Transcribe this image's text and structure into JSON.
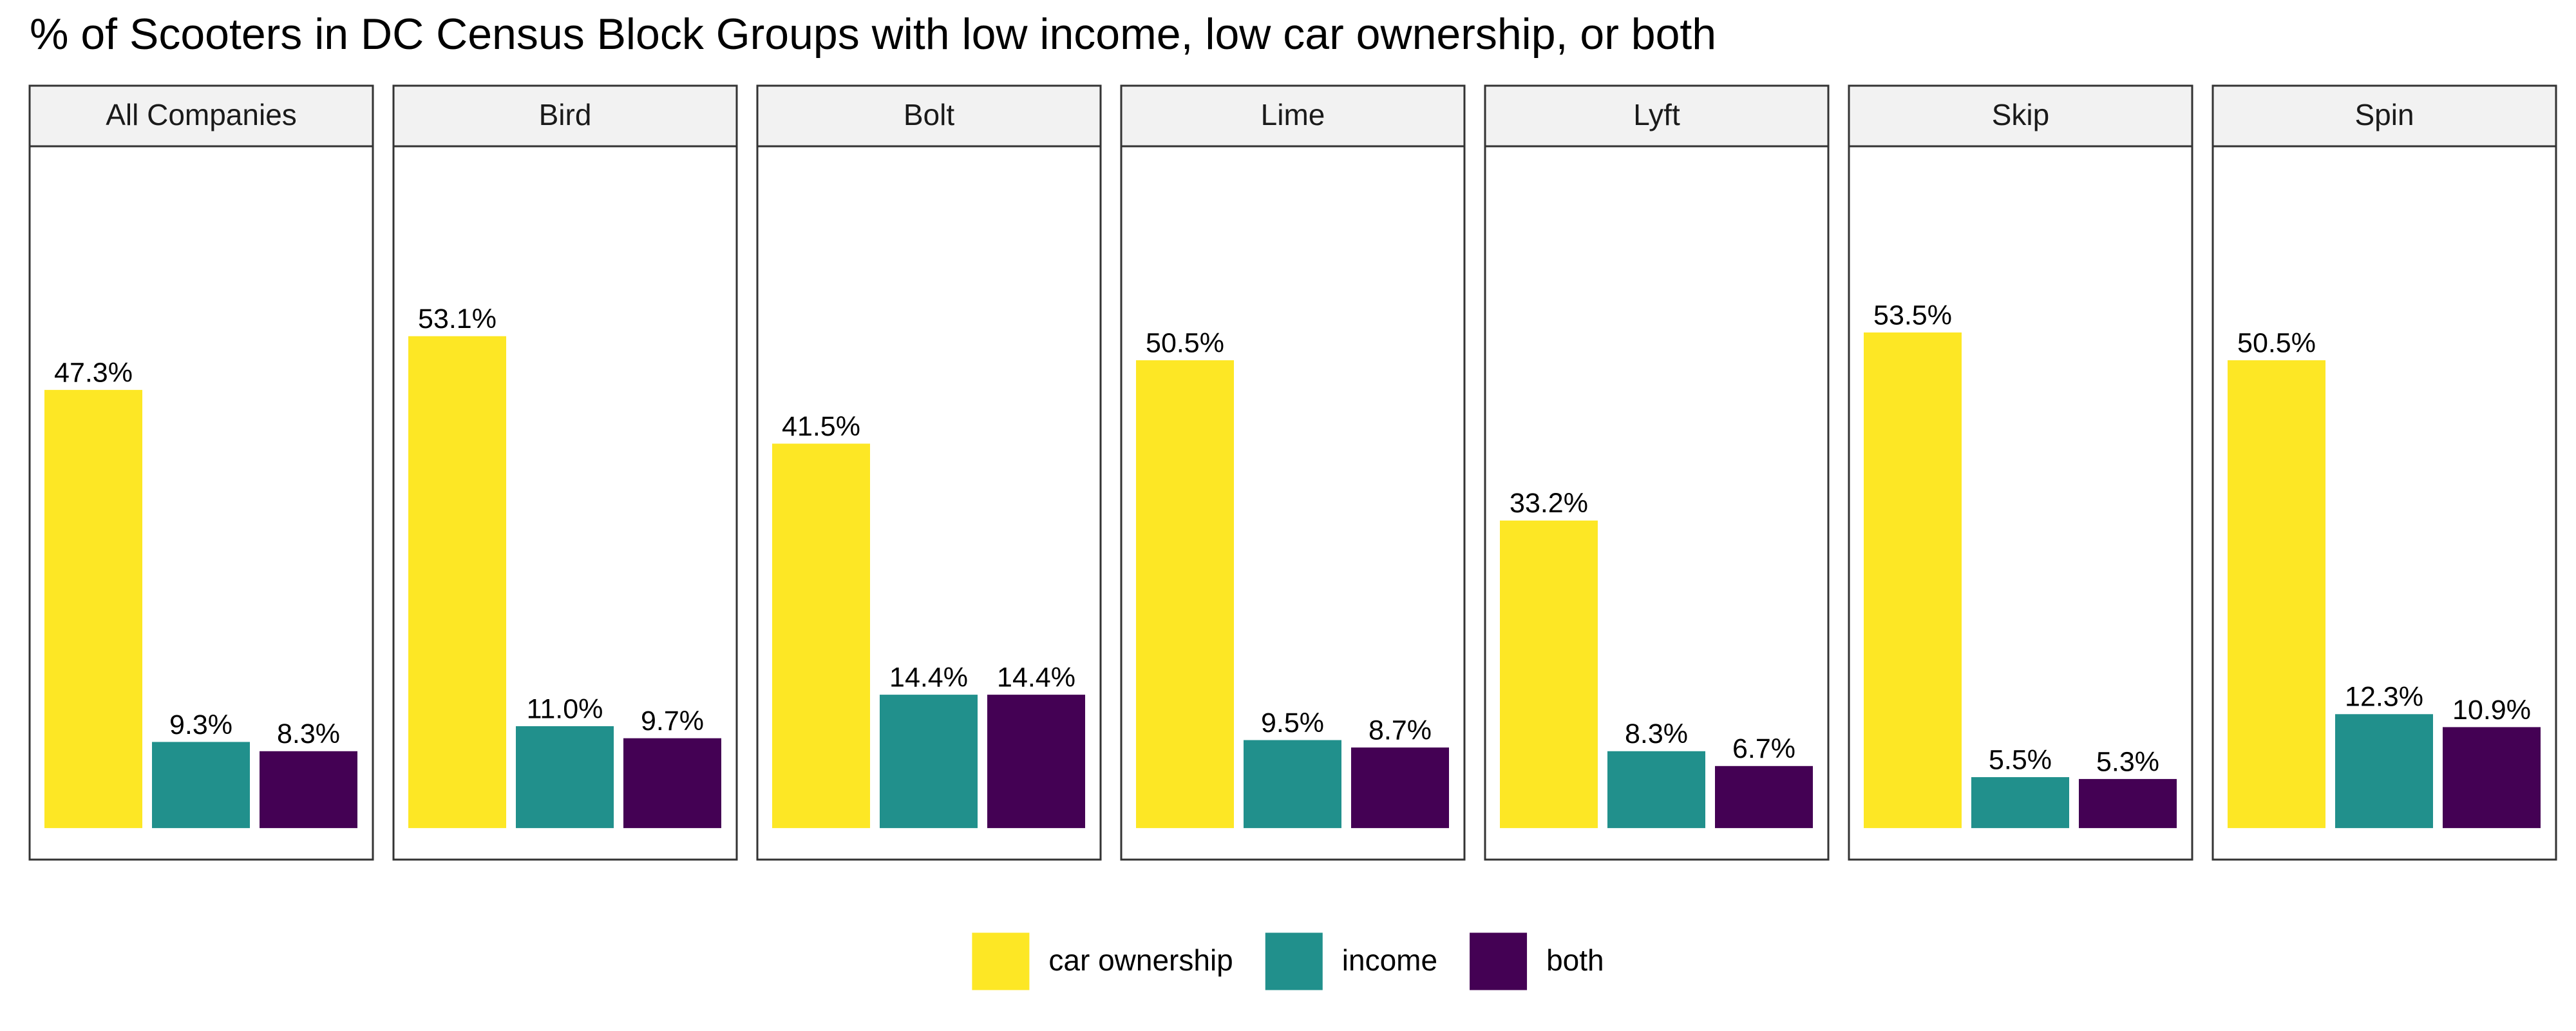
{
  "chart_data": {
    "type": "bar",
    "title": "% of Scooters in DC Census Block Groups with low income, low car ownership, or both",
    "categories": [
      "All Companies",
      "Bird",
      "Bolt",
      "Lime",
      "Lyft",
      "Skip",
      "Spin"
    ],
    "series": [
      {
        "name": "car ownership",
        "color": "#FDE725",
        "values": [
          47.3,
          53.1,
          41.5,
          50.5,
          33.2,
          53.5,
          50.5
        ],
        "value_labels": [
          "47.3%",
          "53.1%",
          "41.5%",
          "50.5%",
          "33.2%",
          "53.5%",
          "50.5%"
        ]
      },
      {
        "name": "income",
        "color": "#21908C",
        "values": [
          9.3,
          11.0,
          14.4,
          9.5,
          8.3,
          5.5,
          12.3
        ],
        "value_labels": [
          "9.3%",
          "11.0%",
          "14.4%",
          "9.5%",
          "8.3%",
          "5.5%",
          "12.3%"
        ]
      },
      {
        "name": "both",
        "color": "#440154",
        "values": [
          8.3,
          9.7,
          14.4,
          8.7,
          6.7,
          5.3,
          10.9
        ],
        "value_labels": [
          "8.3%",
          "9.7%",
          "14.4%",
          "8.7%",
          "6.7%",
          "5.3%",
          "10.9%"
        ]
      }
    ],
    "ylim": [
      -3.4,
      73.6
    ],
    "legend": "bottom"
  }
}
